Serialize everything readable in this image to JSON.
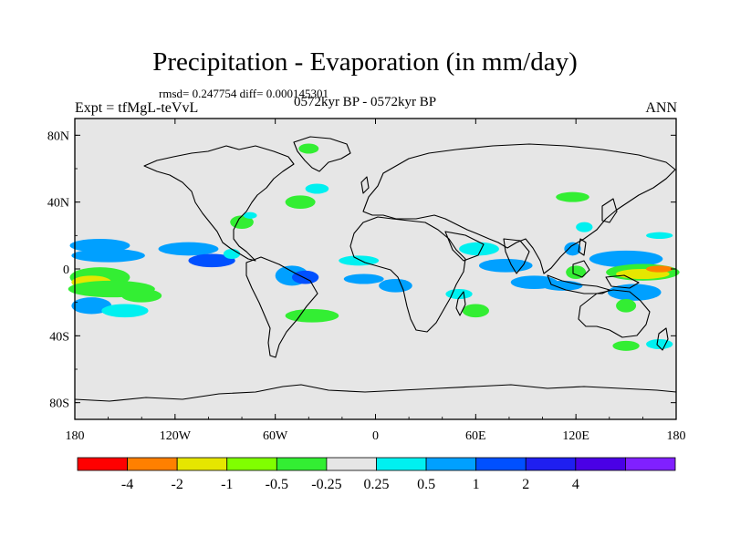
{
  "header": {
    "title": "Precipitation - Evaporation (in mm/day)",
    "stats": "rmsd= 0.247754  diff= 0.000145301",
    "period": "0572kyr BP - 0572kyr BP",
    "experiment": "Expt = tfMgL-teVvL",
    "season": "ANN"
  },
  "map": {
    "projection": "cylindrical-equidistant",
    "lon_range": [
      -180,
      180
    ],
    "lat_range": [
      -90,
      90
    ],
    "background_color": "#e6e6e6",
    "lat_ticks": [
      {
        "value": 80,
        "label": "80N"
      },
      {
        "value": 40,
        "label": "40N"
      },
      {
        "value": 0,
        "label": "0"
      },
      {
        "value": -40,
        "label": "40S"
      },
      {
        "value": -80,
        "label": "80S"
      }
    ],
    "lon_ticks": [
      {
        "value": -180,
        "label": "180"
      },
      {
        "value": -120,
        "label": "120W"
      },
      {
        "value": -60,
        "label": "60W"
      },
      {
        "value": 0,
        "label": "0"
      },
      {
        "value": 60,
        "label": "60E"
      },
      {
        "value": 120,
        "label": "120E"
      },
      {
        "value": 180,
        "label": "180"
      }
    ]
  },
  "colorbar": {
    "colors": [
      "#ff0000",
      "#ff8000",
      "#e6e600",
      "#80ff00",
      "#33ee33",
      "#e6e6e6",
      "#00f0f0",
      "#00a0ff",
      "#0050ff",
      "#1f1ff0",
      "#4a00e6",
      "#8020ff"
    ],
    "labels": [
      "-4",
      "-2",
      "-1",
      "-0.5",
      "-0.25",
      "0.25",
      "0.5",
      "1",
      "2",
      "4"
    ]
  },
  "anomalies": [
    {
      "lon": -165,
      "lat": 14,
      "rlon": 18,
      "rlat": 4,
      "level": 0.7
    },
    {
      "lon": -160,
      "lat": 8,
      "rlon": 22,
      "rlat": 4,
      "level": 0.6
    },
    {
      "lon": -165,
      "lat": -5,
      "rlon": 18,
      "rlat": 6,
      "level": -0.5
    },
    {
      "lon": -170,
      "lat": -8,
      "rlon": 12,
      "rlat": 4,
      "level": -1.5
    },
    {
      "lon": -158,
      "lat": -12,
      "rlon": 26,
      "rlat": 5,
      "level": -0.4
    },
    {
      "lon": -170,
      "lat": -22,
      "rlon": 12,
      "rlat": 5,
      "level": 0.7
    },
    {
      "lon": -150,
      "lat": -25,
      "rlon": 14,
      "rlat": 4,
      "level": 0.4
    },
    {
      "lon": -140,
      "lat": -16,
      "rlon": 12,
      "rlat": 4,
      "level": -0.3
    },
    {
      "lon": -112,
      "lat": 12,
      "rlon": 18,
      "rlat": 4,
      "level": 0.6
    },
    {
      "lon": -98,
      "lat": 5,
      "rlon": 14,
      "rlat": 4,
      "level": 1.2
    },
    {
      "lon": -86,
      "lat": 9,
      "rlon": 5,
      "rlat": 3,
      "level": 0.4
    },
    {
      "lon": -80,
      "lat": 28,
      "rlon": 7,
      "rlat": 4,
      "level": -0.3
    },
    {
      "lon": -75,
      "lat": 32,
      "rlon": 4,
      "rlat": 2,
      "level": 0.4
    },
    {
      "lon": -50,
      "lat": -4,
      "rlon": 10,
      "rlat": 6,
      "level": 0.6
    },
    {
      "lon": -42,
      "lat": -5,
      "rlon": 8,
      "rlat": 4,
      "level": 1.2
    },
    {
      "lon": -38,
      "lat": -28,
      "rlon": 16,
      "rlat": 4,
      "level": -0.3
    },
    {
      "lon": -45,
      "lat": 40,
      "rlon": 9,
      "rlat": 4,
      "level": -0.3
    },
    {
      "lon": -35,
      "lat": 48,
      "rlon": 7,
      "rlat": 3,
      "level": 0.3
    },
    {
      "lon": -40,
      "lat": 72,
      "rlon": 6,
      "rlat": 3,
      "level": -0.3
    },
    {
      "lon": -10,
      "lat": 5,
      "rlon": 12,
      "rlat": 3,
      "level": 0.4
    },
    {
      "lon": -7,
      "lat": -6,
      "rlon": 12,
      "rlat": 3,
      "level": 0.8
    },
    {
      "lon": 12,
      "lat": -10,
      "rlon": 10,
      "rlat": 4,
      "level": 0.5
    },
    {
      "lon": 50,
      "lat": -15,
      "rlon": 8,
      "rlat": 3,
      "level": 0.4
    },
    {
      "lon": 60,
      "lat": -25,
      "rlon": 8,
      "rlat": 4,
      "level": -0.3
    },
    {
      "lon": 62,
      "lat": 12,
      "rlon": 12,
      "rlat": 4,
      "level": 0.4
    },
    {
      "lon": 78,
      "lat": 2,
      "rlon": 16,
      "rlat": 4,
      "level": 0.8
    },
    {
      "lon": 95,
      "lat": -8,
      "rlon": 14,
      "rlat": 4,
      "level": 0.8
    },
    {
      "lon": 112,
      "lat": -10,
      "rlon": 12,
      "rlat": 3,
      "level": 0.5
    },
    {
      "lon": 120,
      "lat": -2,
      "rlon": 6,
      "rlat": 4,
      "level": -0.4
    },
    {
      "lon": 118,
      "lat": 12,
      "rlon": 5,
      "rlat": 4,
      "level": 0.6
    },
    {
      "lon": 150,
      "lat": 6,
      "rlon": 22,
      "rlat": 5,
      "level": 0.7
    },
    {
      "lon": 160,
      "lat": -2,
      "rlon": 22,
      "rlat": 5,
      "level": -0.4
    },
    {
      "lon": 160,
      "lat": -3,
      "rlon": 16,
      "rlat": 3,
      "level": -1.5
    },
    {
      "lon": 170,
      "lat": 0,
      "rlon": 8,
      "rlat": 2,
      "level": -2.5
    },
    {
      "lon": 155,
      "lat": -14,
      "rlon": 16,
      "rlat": 5,
      "level": 0.6
    },
    {
      "lon": 150,
      "lat": -22,
      "rlon": 6,
      "rlat": 4,
      "level": -0.3
    },
    {
      "lon": 150,
      "lat": -46,
      "rlon": 8,
      "rlat": 3,
      "level": -0.3
    },
    {
      "lon": 170,
      "lat": -45,
      "rlon": 8,
      "rlat": 3,
      "level": 0.3
    },
    {
      "lon": 118,
      "lat": 43,
      "rlon": 10,
      "rlat": 3,
      "level": -0.3
    },
    {
      "lon": 125,
      "lat": 25,
      "rlon": 5,
      "rlat": 3,
      "level": 0.3
    },
    {
      "lon": 170,
      "lat": 20,
      "rlon": 8,
      "rlat": 2,
      "level": 0.3
    }
  ]
}
